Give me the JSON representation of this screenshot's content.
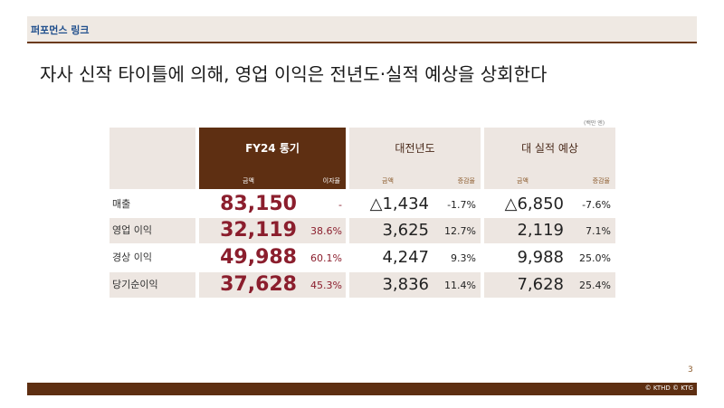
{
  "header": {
    "section_label": "퍼포먼스 링크"
  },
  "headline": "자사 신작 타이틀에 의해, 영업 이익은 전년도·실적 예상을 상회한다",
  "unit_note": "(백만 엔)",
  "table": {
    "group_fy24": "FY24 통기",
    "group_prev": "대전년도",
    "group_forecast": "대 실적 예상",
    "sub_amount": "금액",
    "sub_margin": "이자율",
    "sub_change": "증감율",
    "rows": [
      {
        "label": "매출",
        "fy24": "83,150",
        "margin": "-",
        "prev_amt": "△1,434",
        "prev_pct": "-1.7%",
        "fc_amt": "△6,850",
        "fc_pct": "-7.6%"
      },
      {
        "label": "영업 이익",
        "fy24": "32,119",
        "margin": "38.6%",
        "prev_amt": "3,625",
        "prev_pct": "12.7%",
        "fc_amt": "2,119",
        "fc_pct": "7.1%"
      },
      {
        "label": "경상 이익",
        "fy24": "49,988",
        "margin": "60.1%",
        "prev_amt": "4,247",
        "prev_pct": "9.3%",
        "fc_amt": "9,988",
        "fc_pct": "25.0%"
      },
      {
        "label": "당기순이익",
        "fy24": "37,628",
        "margin": "45.3%",
        "prev_amt": "3,836",
        "prev_pct": "11.4%",
        "fc_amt": "7,628",
        "fc_pct": "25.4%"
      }
    ]
  },
  "page_number": "3",
  "footer": {
    "copyright": "© KTHD © KTG"
  },
  "colors": {
    "brand_dark": "#5e2f12",
    "accent_red": "#8b1e2d",
    "panel_light": "#ede6e1",
    "title_blue": "#1f4e8c"
  }
}
